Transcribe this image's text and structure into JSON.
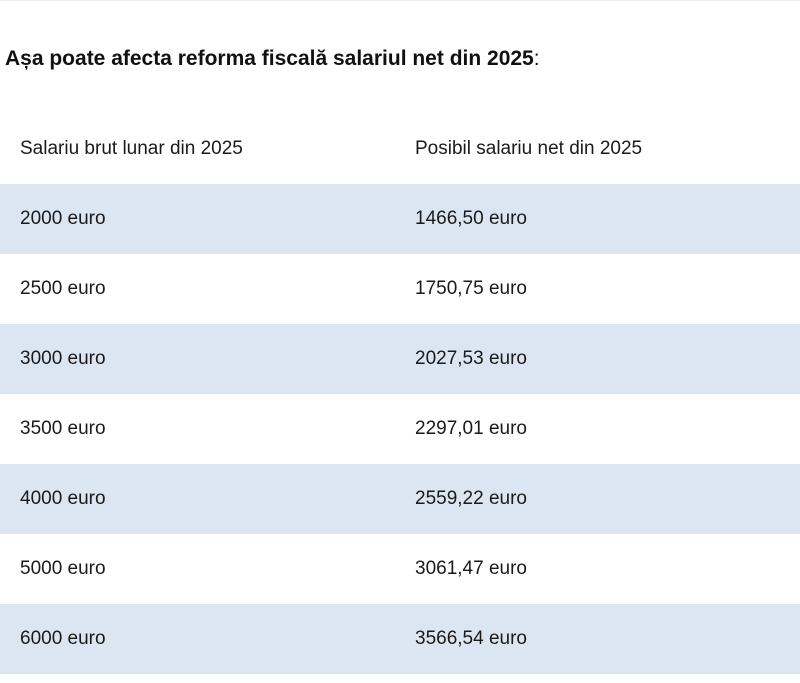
{
  "page": {
    "title_bold": "Așa poate afecta reforma fiscală salariul net din 2025",
    "title_suffix": ":"
  },
  "table": {
    "headers": {
      "gross": "Salariu brut lunar din 2025",
      "net": "Posibil salariu net din 2025"
    },
    "rows": [
      {
        "gross": "2000 euro",
        "net": "1466,50 euro"
      },
      {
        "gross": "2500 euro",
        "net": "1750,75 euro"
      },
      {
        "gross": "3000 euro",
        "net": "2027,53 euro"
      },
      {
        "gross": "3500 euro",
        "net": "2297,01 euro"
      },
      {
        "gross": "4000 euro",
        "net": "2559,22 euro"
      },
      {
        "gross": "5000 euro",
        "net": "3061,47 euro"
      },
      {
        "gross": "6000 euro",
        "net": "3566,54 euro"
      }
    ]
  },
  "colors": {
    "row_shade": "#dce6f2",
    "text": "#1a1a1a"
  }
}
